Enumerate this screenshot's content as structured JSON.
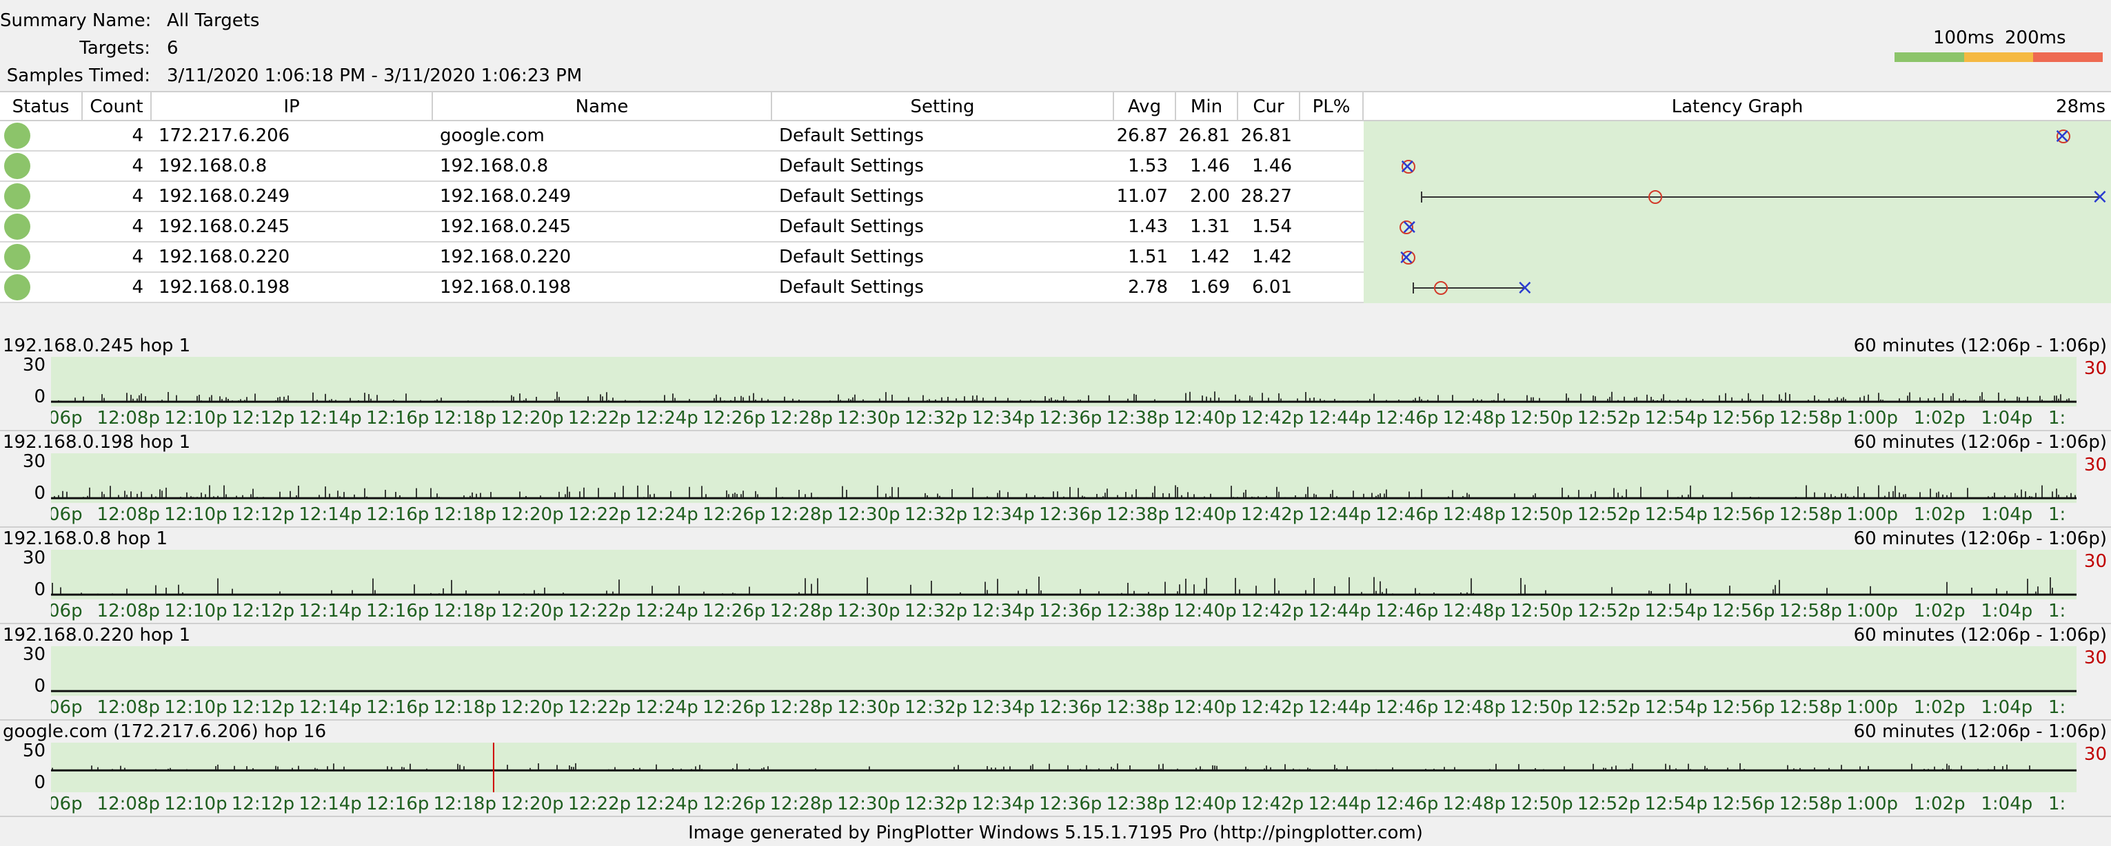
{
  "summary": {
    "name_label": "Summary Name:",
    "name_value": "All Targets",
    "targets_label": "Targets:",
    "targets_value": "6",
    "samples_label": "Samples Timed:",
    "samples_value": "3/11/2020 1:06:18 PM - 3/11/2020 1:06:23 PM"
  },
  "legend": {
    "label_100": "100ms",
    "label_200": "200ms",
    "colors": [
      "#8cc46a",
      "#f5b942",
      "#ee6a52"
    ]
  },
  "table": {
    "headers": {
      "status": "Status",
      "count": "Count",
      "ip": "IP",
      "name": "Name",
      "setting": "Setting",
      "avg": "Avg",
      "min": "Min",
      "cur": "Cur",
      "pl": "PL%",
      "latency": "Latency Graph",
      "scale": "28ms"
    },
    "status_color": "#8cc46a",
    "rows": [
      {
        "count": "4",
        "ip": "172.217.6.206",
        "name": "google.com",
        "setting": "Default Settings",
        "avg": "26.87",
        "min": "26.81",
        "cur": "26.81",
        "pl": "",
        "lat_min": 26.81,
        "lat_avg": 26.87,
        "lat_cur": 26.81
      },
      {
        "count": "4",
        "ip": "192.168.0.8",
        "name": "192.168.0.8",
        "setting": "Default Settings",
        "avg": "1.53",
        "min": "1.46",
        "cur": "1.46",
        "pl": "",
        "lat_min": 1.46,
        "lat_avg": 1.53,
        "lat_cur": 1.46
      },
      {
        "count": "4",
        "ip": "192.168.0.249",
        "name": "192.168.0.249",
        "setting": "Default Settings",
        "avg": "11.07",
        "min": "2.00",
        "cur": "28.27",
        "pl": "",
        "lat_min": 2.0,
        "lat_avg": 11.07,
        "lat_cur": 28.27
      },
      {
        "count": "4",
        "ip": "192.168.0.245",
        "name": "192.168.0.245",
        "setting": "Default Settings",
        "avg": "1.43",
        "min": "1.31",
        "cur": "1.54",
        "pl": "",
        "lat_min": 1.31,
        "lat_avg": 1.43,
        "lat_cur": 1.54
      },
      {
        "count": "4",
        "ip": "192.168.0.220",
        "name": "192.168.0.220",
        "setting": "Default Settings",
        "avg": "1.51",
        "min": "1.42",
        "cur": "1.42",
        "pl": "",
        "lat_min": 1.42,
        "lat_avg": 1.51,
        "lat_cur": 1.42
      },
      {
        "count": "4",
        "ip": "192.168.0.198",
        "name": "192.168.0.198",
        "setting": "Default Settings",
        "avg": "2.78",
        "min": "1.69",
        "cur": "6.01",
        "pl": "",
        "lat_min": 1.69,
        "lat_avg": 2.78,
        "lat_cur": 6.01
      }
    ]
  },
  "time_labels": [
    "06p",
    "12:08p",
    "12:10p",
    "12:12p",
    "12:14p",
    "12:16p",
    "12:18p",
    "12:20p",
    "12:22p",
    "12:24p",
    "12:26p",
    "12:28p",
    "12:30p",
    "12:32p",
    "12:34p",
    "12:36p",
    "12:38p",
    "12:40p",
    "12:42p",
    "12:44p",
    "12:46p",
    "12:48p",
    "12:50p",
    "12:52p",
    "12:54p",
    "12:56p",
    "12:58p",
    "1:00p",
    "1:02p",
    "1:04p",
    "1:"
  ],
  "graphs": [
    {
      "title": "192.168.0.245 hop 1",
      "period": "60 minutes (12:06p - 1:06p)",
      "y_top": "30",
      "y_bottom": "0",
      "scale": "30",
      "seed": 11,
      "spike_max": 8,
      "density": 0.55,
      "lost_at": []
    },
    {
      "title": "192.168.0.198 hop 1",
      "period": "60 minutes (12:06p - 1:06p)",
      "y_top": "30",
      "y_bottom": "0",
      "scale": "30",
      "seed": 23,
      "spike_max": 10,
      "density": 0.5,
      "lost_at": []
    },
    {
      "title": "192.168.0.8 hop 1",
      "period": "60 minutes (12:06p - 1:06p)",
      "y_top": "30",
      "y_bottom": "0",
      "scale": "30",
      "seed": 37,
      "spike_max": 14,
      "density": 0.2,
      "lost_at": []
    },
    {
      "title": "192.168.0.220 hop 1",
      "period": "60 minutes (12:06p - 1:06p)",
      "y_top": "30",
      "y_bottom": "0",
      "scale": "30",
      "seed": 0,
      "spike_max": 0,
      "density": 0,
      "lost_at": []
    },
    {
      "title": "google.com (172.217.6.206) hop 16",
      "period": "60 minutes (12:06p - 1:06p)",
      "y_top": "50",
      "y_bottom": "0",
      "scale": "30",
      "seed": 51,
      "spike_max": 10,
      "density": 0.3,
      "baseline": 26,
      "ymax": 60,
      "lost_at": [
        0.2185
      ]
    }
  ],
  "footer": "Image generated by PingPlotter Windows 5.15.1.7195 Pro (http://pingplotter.com)"
}
